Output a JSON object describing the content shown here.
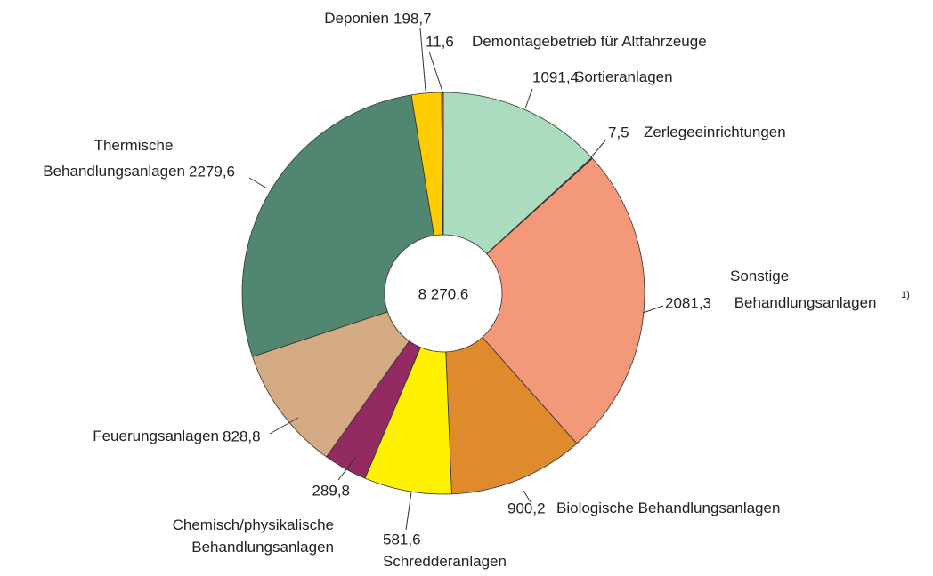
{
  "chart_data": {
    "type": "donut",
    "categories": [
      "Sortieranlagen",
      "Zerlegeeinrichtungen",
      "Sonstige Behandlungsanlagen",
      "Biologische Behandlungsanlagen",
      "Schredderanlagen",
      "Chemisch/physikalische Behandlungsanlagen",
      "Feuerungsanlagen",
      "Thermische Behandlungsanlagen",
      "Deponien",
      "Demontagebetrieb für Altfahrzeuge"
    ],
    "values": [
      1091.4,
      7.5,
      2081.3,
      900.2,
      581.6,
      289.8,
      828.8,
      2279.6,
      198.7,
      11.6
    ],
    "value_labels": [
      "1091,4",
      "7,5",
      "2081,3",
      "900,2",
      "581,6",
      "289,8",
      "828,8",
      "2279,6",
      "198,7",
      "11,6"
    ],
    "colors": [
      "#acdcbf",
      "#2e5e3e",
      "#f4987a",
      "#e08a2e",
      "#fff200",
      "#942a62",
      "#d4aa84",
      "#518670",
      "#ffcc00",
      "#c07020"
    ],
    "total": 8270.6,
    "total_label": "8 270,6",
    "footnote_marker": "1)"
  }
}
